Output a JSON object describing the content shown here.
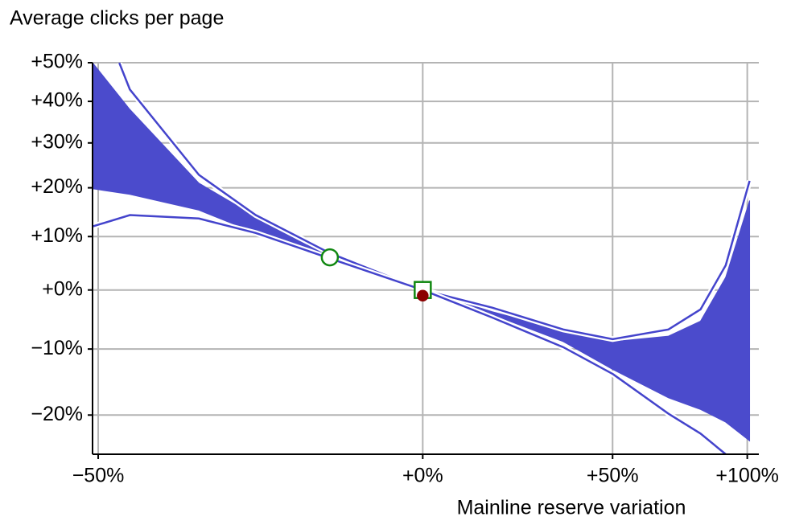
{
  "chart_data": {
    "type": "band",
    "title": "Average clicks per page",
    "xlabel": "Mainline reserve variation",
    "scale": "log-ratio",
    "grid": true,
    "xlim": [
      -50.6,
      105
    ],
    "ylim": [
      -25.4,
      50
    ],
    "xticks": [
      {
        "value": -50,
        "label": "−50%"
      },
      {
        "value": 0,
        "label": "+0%"
      },
      {
        "value": 50,
        "label": "+50%"
      },
      {
        "value": 100,
        "label": "+100%"
      }
    ],
    "yticks": [
      {
        "value": 50,
        "label": "+50%"
      },
      {
        "value": 40,
        "label": "+40%"
      },
      {
        "value": 30,
        "label": "+30%"
      },
      {
        "value": 20,
        "label": "+20%"
      },
      {
        "value": 10,
        "label": "+10%"
      },
      {
        "value": 0,
        "label": "+0%"
      },
      {
        "value": -10,
        "label": "−10%"
      },
      {
        "value": -20,
        "label": "−20%"
      }
    ],
    "band": {
      "color": "#4b4bcc",
      "x": [
        -50.6,
        -46.5,
        -38,
        -30,
        -18,
        0,
        16,
        35,
        50,
        69,
        81,
        91,
        101
      ],
      "upper": [
        50,
        38,
        21,
        14,
        6.4,
        0,
        -3.8,
        -7,
        -8.8,
        -7.9,
        -5.4,
        2.3,
        17.3
      ],
      "lower": [
        19.8,
        18.6,
        15.3,
        10.7,
        5.3,
        0,
        -4.3,
        -8.8,
        -13.2,
        -17.5,
        -19.2,
        -21,
        -23.6
      ]
    },
    "series": [
      {
        "color": "#4444cc",
        "x": [
          -47.7,
          -46.5,
          -38,
          -30,
          -18,
          0,
          16,
          35,
          50,
          69,
          81,
          91,
          101
        ],
        "values": [
          50,
          43,
          22.8,
          14.3,
          6.8,
          0,
          -3.1,
          -6.8,
          -8.4,
          -6.8,
          -3.4,
          4.5,
          21.5
        ]
      },
      {
        "color": "#4444cc",
        "x": [
          -50.6,
          -46.5,
          -38,
          -30,
          -18,
          0,
          16,
          35,
          50,
          69,
          81,
          91
        ],
        "values": [
          12,
          14.3,
          13.6,
          10.7,
          5.8,
          0,
          -4.8,
          -9.7,
          -13.9,
          -19.8,
          -22.6,
          -25.4
        ]
      }
    ],
    "points": [
      {
        "x": -18,
        "y": 6,
        "shape": "circle",
        "color": "#118811",
        "fill": "#ffffff"
      },
      {
        "x": 0,
        "y": 0,
        "shape": "square",
        "color": "#118811",
        "fill": "#ffffff"
      },
      {
        "x": 0,
        "y": -1,
        "shape": "dot",
        "color": "#8b0000",
        "fill": "#8b0000"
      }
    ]
  }
}
